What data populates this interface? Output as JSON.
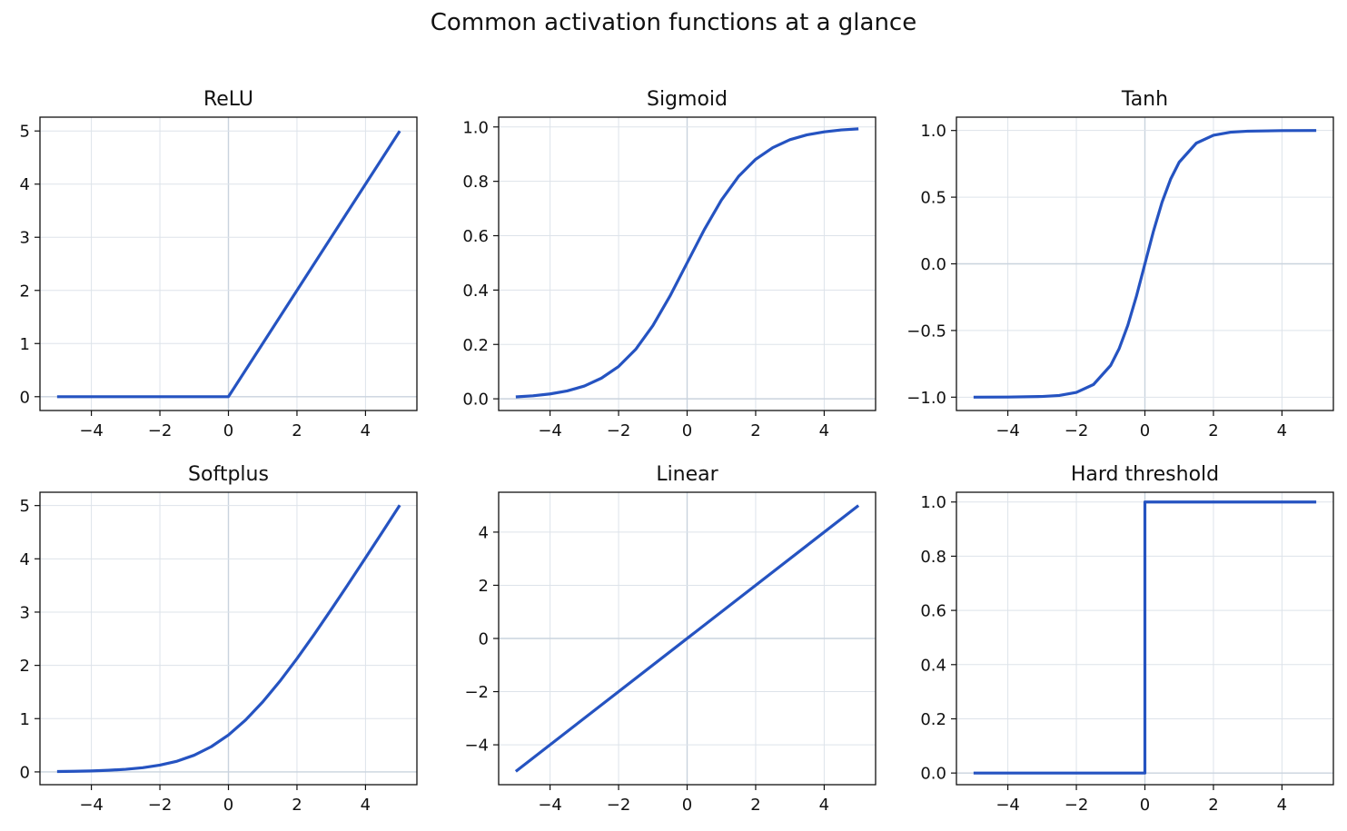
{
  "figure": {
    "title": "Common activation functions at a glance"
  },
  "colors": {
    "curve": "#2553c1",
    "grid": "#dde3ea",
    "zero_line": "#c9d3de",
    "axes": "#111111"
  },
  "chart_data": [
    {
      "type": "line",
      "title": "ReLU",
      "xlim": [
        -5.5,
        5.5
      ],
      "ylim": [
        -0.26,
        5.26
      ],
      "xticks": [
        -4,
        -2,
        0,
        2,
        4
      ],
      "xtick_labels": [
        "−4",
        "−2",
        "0",
        "2",
        "4"
      ],
      "yticks": [
        0,
        1,
        2,
        3,
        4,
        5
      ],
      "ytick_labels": [
        "0",
        "1",
        "2",
        "3",
        "4",
        "5"
      ],
      "grid": true,
      "series": [
        {
          "x": [
            -5,
            0,
            5
          ],
          "y": [
            0,
            0,
            5
          ]
        }
      ]
    },
    {
      "type": "line",
      "title": "Sigmoid",
      "xlim": [
        -5.5,
        5.5
      ],
      "ylim": [
        -0.043,
        1.036
      ],
      "xticks": [
        -4,
        -2,
        0,
        2,
        4
      ],
      "xtick_labels": [
        "−4",
        "−2",
        "0",
        "2",
        "4"
      ],
      "yticks": [
        0,
        0.2,
        0.4,
        0.6,
        0.8,
        1.0
      ],
      "ytick_labels": [
        "0.0",
        "0.2",
        "0.4",
        "0.6",
        "0.8",
        "1.0"
      ],
      "grid": true,
      "series": [
        {
          "x": [
            -5,
            -4.5,
            -4,
            -3.5,
            -3,
            -2.5,
            -2,
            -1.5,
            -1,
            -0.5,
            0,
            0.5,
            1,
            1.5,
            2,
            2.5,
            3,
            3.5,
            4,
            4.5,
            5
          ],
          "y": [
            0.007,
            0.011,
            0.018,
            0.029,
            0.047,
            0.076,
            0.119,
            0.182,
            0.269,
            0.378,
            0.5,
            0.622,
            0.731,
            0.818,
            0.881,
            0.924,
            0.953,
            0.971,
            0.982,
            0.989,
            0.993
          ]
        }
      ]
    },
    {
      "type": "line",
      "title": "Tanh",
      "xlim": [
        -5.5,
        5.5
      ],
      "ylim": [
        -1.1,
        1.1
      ],
      "xticks": [
        -4,
        -2,
        0,
        2,
        4
      ],
      "xtick_labels": [
        "−4",
        "−2",
        "0",
        "2",
        "4"
      ],
      "yticks": [
        -1.0,
        -0.5,
        0.0,
        0.5,
        1.0
      ],
      "ytick_labels": [
        "−1.0",
        "−0.5",
        "0.0",
        "0.5",
        "1.0"
      ],
      "grid": true,
      "series": [
        {
          "x": [
            -5,
            -4,
            -3,
            -2.5,
            -2,
            -1.5,
            -1,
            -0.75,
            -0.5,
            -0.25,
            0,
            0.25,
            0.5,
            0.75,
            1,
            1.5,
            2,
            2.5,
            3,
            4,
            5
          ],
          "y": [
            -1.0,
            -0.999,
            -0.995,
            -0.987,
            -0.964,
            -0.905,
            -0.762,
            -0.635,
            -0.462,
            -0.245,
            0,
            0.245,
            0.462,
            0.635,
            0.762,
            0.905,
            0.964,
            0.987,
            0.995,
            0.999,
            1.0
          ]
        }
      ]
    },
    {
      "type": "line",
      "title": "Softplus",
      "xlim": [
        -5.5,
        5.5
      ],
      "ylim": [
        -0.24,
        5.25
      ],
      "xticks": [
        -4,
        -2,
        0,
        2,
        4
      ],
      "xtick_labels": [
        "−4",
        "−2",
        "0",
        "2",
        "4"
      ],
      "yticks": [
        0,
        1,
        2,
        3,
        4,
        5
      ],
      "ytick_labels": [
        "0",
        "1",
        "2",
        "3",
        "4",
        "5"
      ],
      "grid": true,
      "series": [
        {
          "x": [
            -5,
            -4.5,
            -4,
            -3.5,
            -3,
            -2.5,
            -2,
            -1.5,
            -1,
            -0.5,
            0,
            0.5,
            1,
            1.5,
            2,
            2.5,
            3,
            3.5,
            4,
            4.5,
            5
          ],
          "y": [
            0.007,
            0.011,
            0.018,
            0.03,
            0.049,
            0.079,
            0.127,
            0.201,
            0.313,
            0.474,
            0.693,
            0.974,
            1.313,
            1.701,
            2.127,
            2.579,
            3.049,
            3.53,
            4.018,
            4.511,
            5.007
          ]
        }
      ]
    },
    {
      "type": "line",
      "title": "Linear",
      "xlim": [
        -5.5,
        5.5
      ],
      "ylim": [
        -5.5,
        5.5
      ],
      "xticks": [
        -4,
        -2,
        0,
        2,
        4
      ],
      "xtick_labels": [
        "−4",
        "−2",
        "0",
        "2",
        "4"
      ],
      "yticks": [
        -4,
        -2,
        0,
        2,
        4
      ],
      "ytick_labels": [
        "−4",
        "−2",
        "0",
        "2",
        "4"
      ],
      "grid": true,
      "series": [
        {
          "x": [
            -5,
            5
          ],
          "y": [
            -5,
            5
          ]
        }
      ]
    },
    {
      "type": "line",
      "title": "Hard threshold",
      "xlim": [
        -5.5,
        5.5
      ],
      "ylim": [
        -0.043,
        1.036
      ],
      "xticks": [
        -4,
        -2,
        0,
        2,
        4
      ],
      "xtick_labels": [
        "−4",
        "−2",
        "0",
        "2",
        "4"
      ],
      "yticks": [
        0,
        0.2,
        0.4,
        0.6,
        0.8,
        1.0
      ],
      "ytick_labels": [
        "0.0",
        "0.2",
        "0.4",
        "0.6",
        "0.8",
        "1.0"
      ],
      "grid": true,
      "series": [
        {
          "x": [
            -5,
            0,
            0,
            5
          ],
          "y": [
            0,
            0,
            1,
            1
          ]
        }
      ]
    }
  ]
}
